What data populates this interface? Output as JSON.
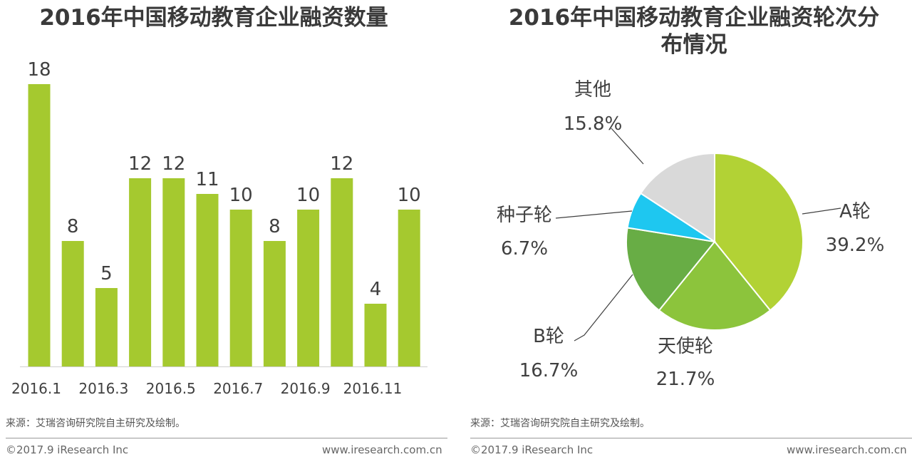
{
  "chart_data": [
    {
      "type": "bar",
      "title": "2016年中国移动教育企业融资数量",
      "categories": [
        "2016.1",
        "2016.2",
        "2016.3",
        "2016.4",
        "2016.5",
        "2016.6",
        "2016.7",
        "2016.8",
        "2016.9",
        "2016.10",
        "2016.11",
        "2016.12"
      ],
      "tick_labels": [
        "2016.1",
        "2016.3",
        "2016.5",
        "2016.7",
        "2016.9",
        "2016.11"
      ],
      "values": [
        18,
        8,
        5,
        12,
        12,
        11,
        10,
        8,
        10,
        12,
        4,
        10
      ],
      "ylim": [
        0,
        18
      ],
      "xlabel": "",
      "ylabel": "",
      "color": "#a5c92f"
    },
    {
      "type": "pie",
      "title": "2016年中国移动教育企业融资轮次分布情况",
      "title_line1": "2016年中国移动教育企业融资轮次分",
      "title_line2": "布情况",
      "slices": [
        {
          "label": "A轮",
          "value": 39.2,
          "display": "39.2%",
          "color": "#b2d235"
        },
        {
          "label": "天使轮",
          "value": 21.7,
          "display": "21.7%",
          "color": "#8cc43c"
        },
        {
          "label": "B轮",
          "value": 16.7,
          "display": "16.7%",
          "color": "#68ad45"
        },
        {
          "label": "种子轮",
          "value": 6.7,
          "display": "6.7%",
          "color": "#1ec7f0"
        },
        {
          "label": "其他",
          "value": 15.8,
          "display": "15.8%",
          "color": "#d9d9d9"
        }
      ]
    }
  ],
  "footer": {
    "source": "来源：艾瑞咨询研究院自主研究及绘制。",
    "copyright": "©2017.9 iResearch Inc",
    "website": "www.iresearch.com.cn"
  }
}
